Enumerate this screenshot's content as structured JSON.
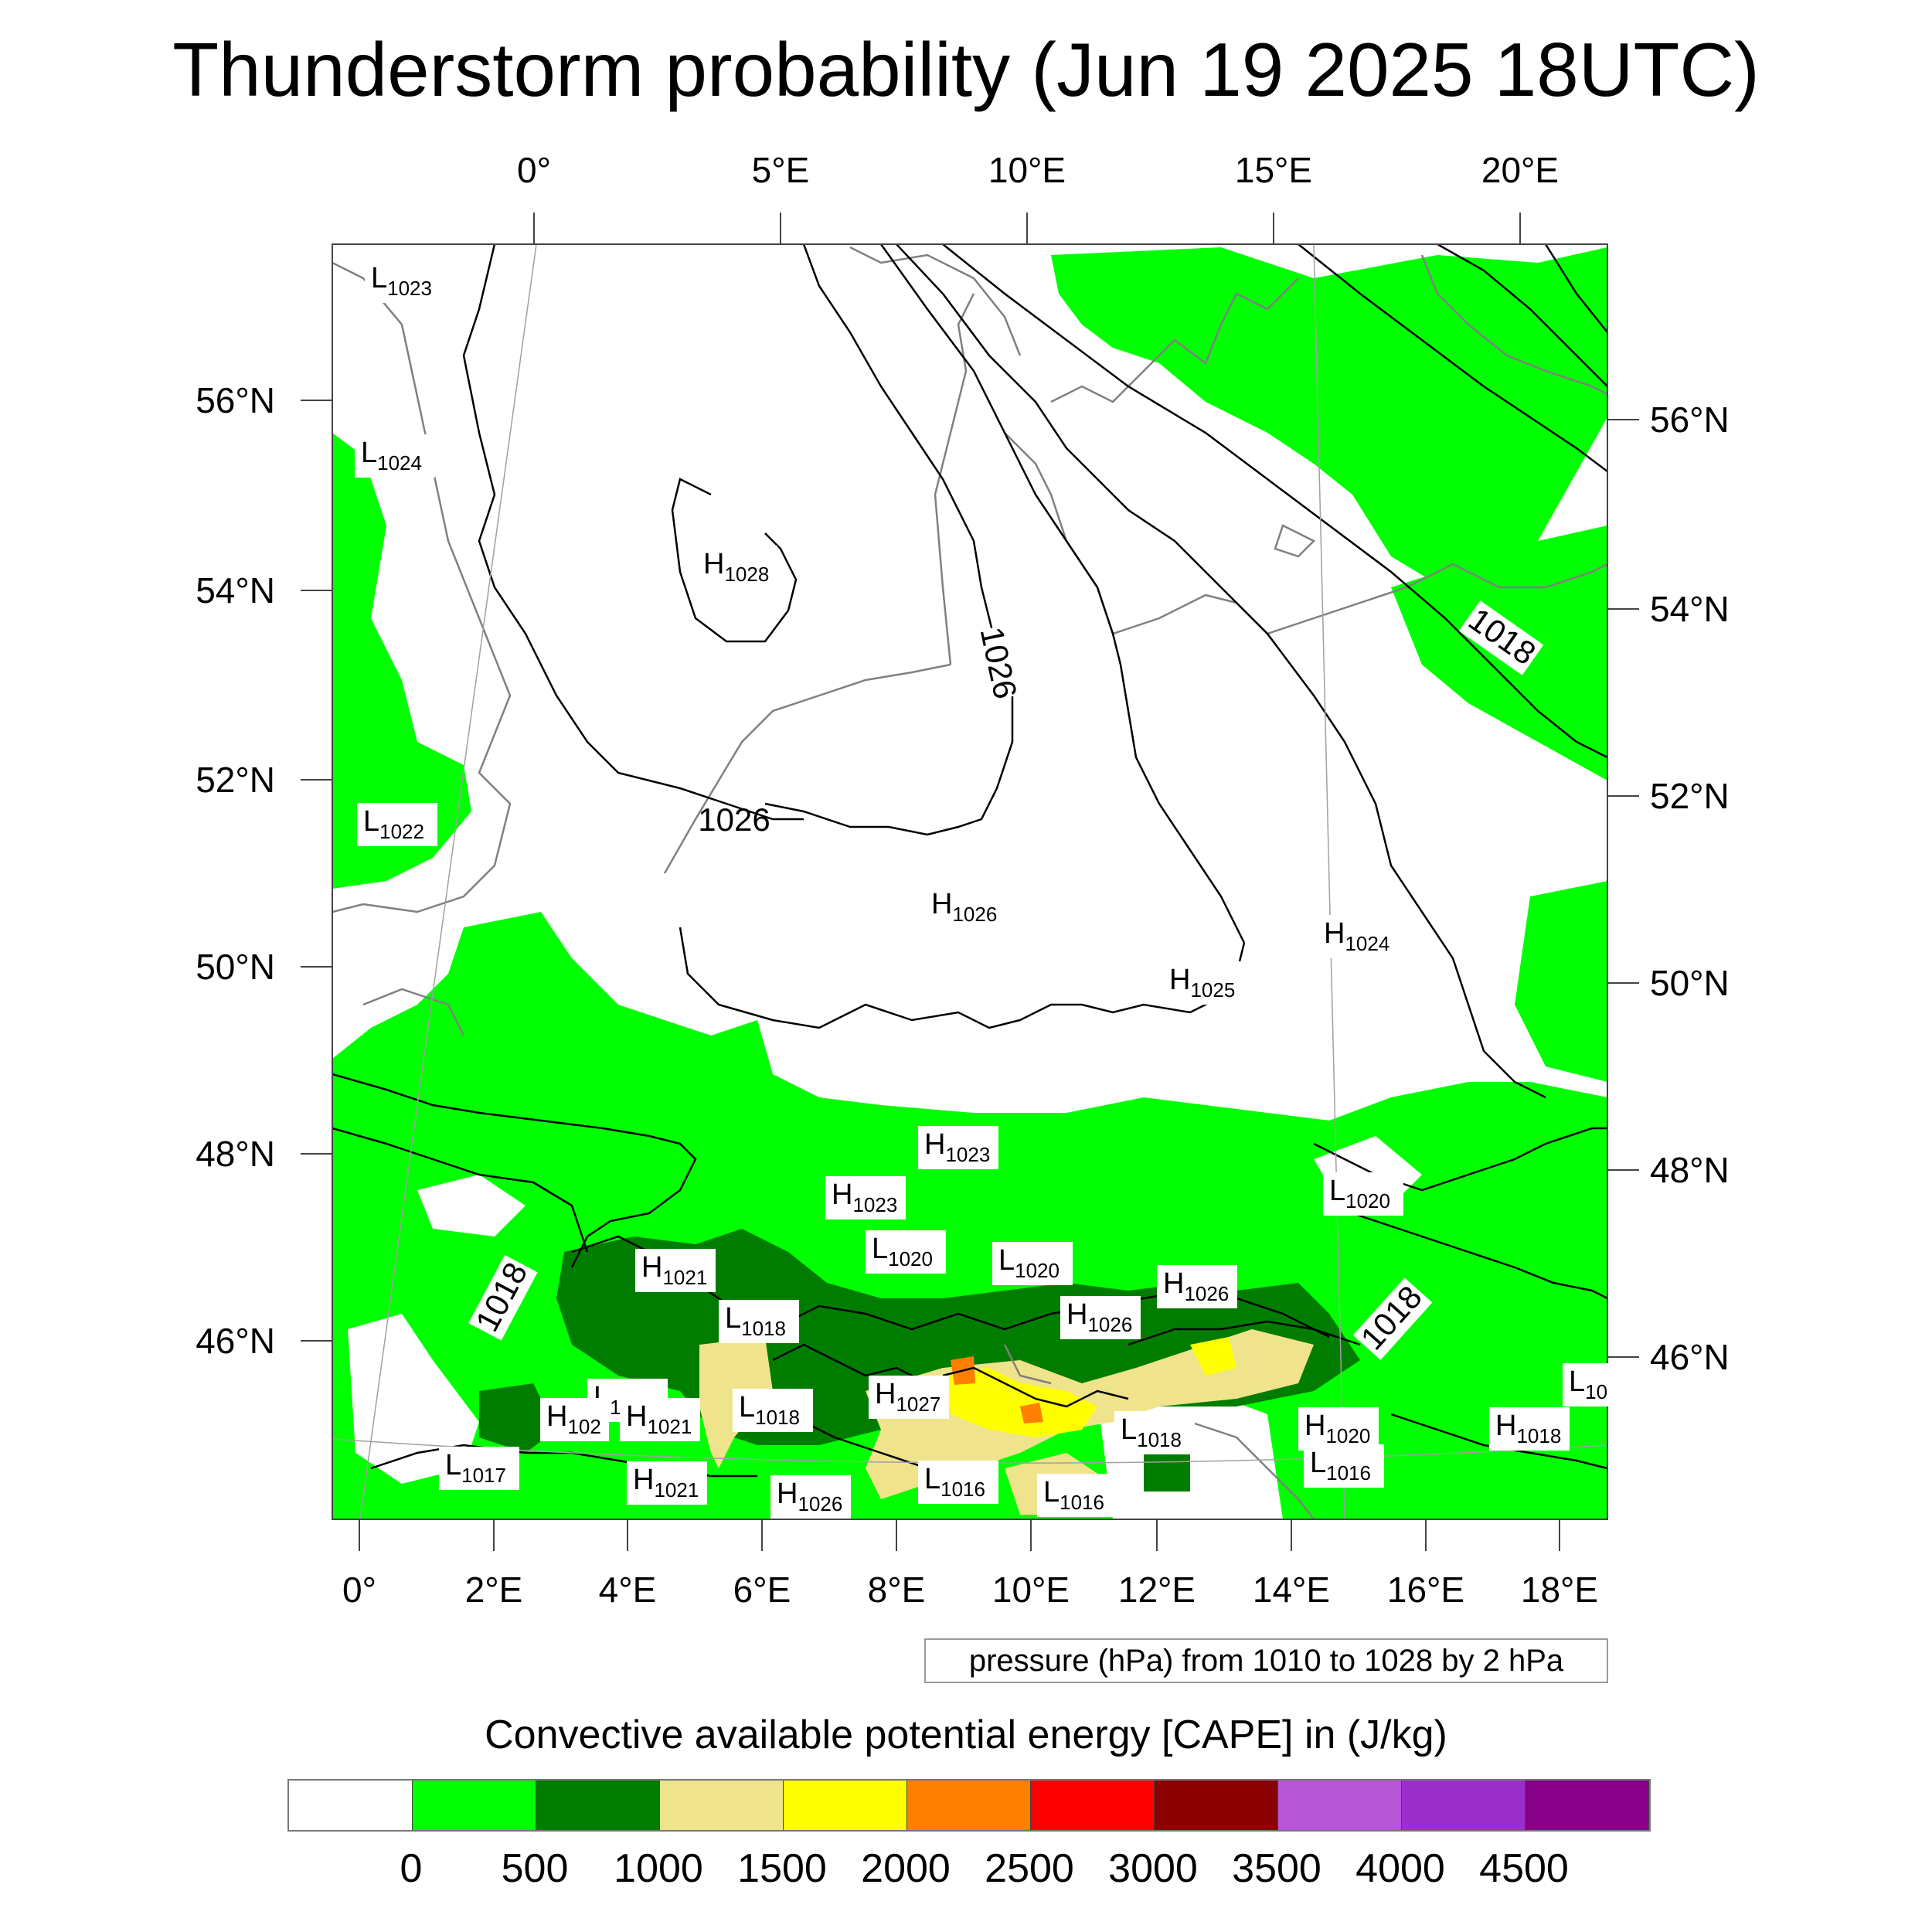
{
  "title": "Thunderstorm probability (Jun 19 2025 18UTC)",
  "map": {
    "top_lon_labels": [
      "0°",
      "5°E",
      "10°E",
      "15°E",
      "20°E"
    ],
    "bottom_lon_labels": [
      "0°",
      "2°E",
      "4°E",
      "6°E",
      "8°E",
      "10°E",
      "12°E",
      "14°E",
      "16°E",
      "18°E"
    ],
    "left_lat_labels": [
      "56°N",
      "54°N",
      "52°N",
      "50°N",
      "48°N",
      "46°N"
    ],
    "right_lat_labels": [
      "56°N",
      "54°N",
      "52°N",
      "50°N",
      "48°N",
      "46°N"
    ],
    "colors": {
      "coastline": "#808080",
      "isobar": "#000000",
      "grid": "#a0a0a0"
    },
    "isobar_labels": [
      "1026",
      "1026",
      "1018",
      "1018",
      "1018"
    ],
    "pressure_centers": [
      {
        "type": "L",
        "value": "1023"
      },
      {
        "type": "L",
        "value": "1024"
      },
      {
        "type": "H",
        "value": "1028"
      },
      {
        "type": "L",
        "value": "1022"
      },
      {
        "type": "H",
        "value": "1026"
      },
      {
        "type": "H",
        "value": "1025"
      },
      {
        "type": "H",
        "value": "1024"
      },
      {
        "type": "H",
        "value": "1023"
      },
      {
        "type": "H",
        "value": "1023"
      },
      {
        "type": "L",
        "value": "1020"
      },
      {
        "type": "L",
        "value": "1020"
      },
      {
        "type": "L",
        "value": "1020"
      },
      {
        "type": "H",
        "value": "1021"
      },
      {
        "type": "L",
        "value": "1018"
      },
      {
        "type": "H",
        "value": "1026"
      },
      {
        "type": "H",
        "value": "1026"
      },
      {
        "type": "L",
        "value": "1018"
      },
      {
        "type": "L",
        "value": "1018"
      },
      {
        "type": "H",
        "value": "1027"
      },
      {
        "type": "H",
        "value": "102"
      },
      {
        "type": "H",
        "value": "1021"
      },
      {
        "type": "L",
        "value": "1018"
      },
      {
        "type": "H",
        "value": "1020"
      },
      {
        "type": "L",
        "value": "1016"
      },
      {
        "type": "H",
        "value": "1018"
      },
      {
        "type": "L",
        "value": "10"
      },
      {
        "type": "L",
        "value": "1017"
      },
      {
        "type": "H",
        "value": "1021"
      },
      {
        "type": "L",
        "value": "1016"
      },
      {
        "type": "L",
        "value": "1016"
      },
      {
        "type": "H",
        "value": "1026"
      }
    ]
  },
  "info_box": "pressure (hPa) from 1010 to 1028 by 2 hPa",
  "colorbar": {
    "title": "Convective available potential energy [CAPE] in (J/kg)",
    "colors": [
      "#ffffff",
      "#00ff00",
      "#007d00",
      "#efe48c",
      "#ffff00",
      "#ff8000",
      "#ff0000",
      "#8b0000",
      "#b655d6",
      "#9a2fcc",
      "#880088"
    ],
    "labels": [
      "0",
      "500",
      "1000",
      "1500",
      "2000",
      "2500",
      "3000",
      "3500",
      "4000",
      "4500"
    ]
  }
}
